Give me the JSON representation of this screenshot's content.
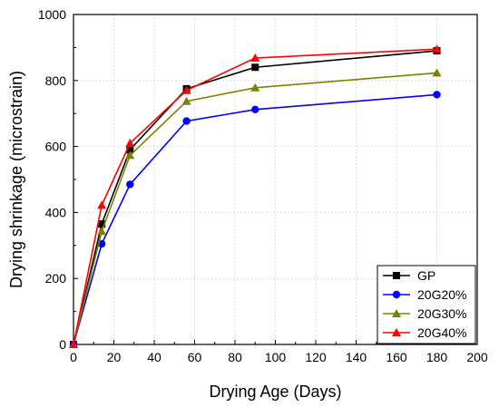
{
  "chart_data": {
    "type": "line",
    "title": "",
    "xlabel": "Drying Age (Days)",
    "ylabel": "Drying shrinkage (microstrain)",
    "xlim": [
      0,
      200
    ],
    "ylim": [
      0,
      1000
    ],
    "xticks": [
      0,
      20,
      40,
      60,
      80,
      100,
      120,
      140,
      160,
      180,
      200
    ],
    "yticks": [
      0,
      200,
      400,
      600,
      800,
      1000
    ],
    "grid": true,
    "legend_position": "bottom-right",
    "x": [
      0,
      14,
      28,
      56,
      90,
      180
    ],
    "series": [
      {
        "name": "GP",
        "color": "#000000",
        "marker": "square",
        "values": [
          0,
          365,
          590,
          775,
          840,
          890
        ]
      },
      {
        "name": "20G20%",
        "color": "#0000ff",
        "marker": "circle",
        "values": [
          0,
          305,
          485,
          677,
          712,
          757
        ]
      },
      {
        "name": "20G30%",
        "color": "#808000",
        "marker": "triangle",
        "values": [
          0,
          343,
          573,
          737,
          778,
          823
        ]
      },
      {
        "name": "20G40%",
        "color": "#ff0000",
        "marker": "triangle",
        "values": [
          0,
          422,
          610,
          770,
          868,
          895
        ]
      }
    ]
  }
}
